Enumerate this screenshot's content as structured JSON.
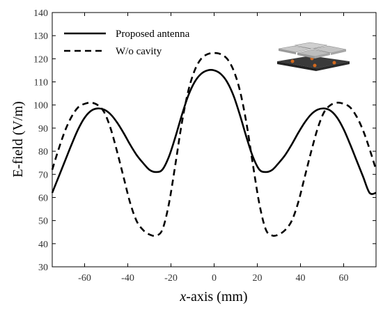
{
  "chart_data": {
    "type": "line",
    "xlabel_italic": "x",
    "xlabel_rest": "-axis (mm)",
    "ylabel": "E-field (V/m)",
    "xlim": [
      -75,
      75
    ],
    "ylim": [
      30,
      140
    ],
    "xticks": [
      -60,
      -40,
      -20,
      0,
      20,
      40,
      60
    ],
    "yticks": [
      30,
      40,
      50,
      60,
      70,
      80,
      90,
      100,
      110,
      120,
      130,
      140
    ],
    "grid": false,
    "legend_position": "top-left",
    "series": [
      {
        "name": "Proposed antenna",
        "style": "solid",
        "color": "#000000",
        "x": [
          -75,
          -72,
          -69,
          -66,
          -63,
          -60,
          -57,
          -54,
          -51,
          -48,
          -45,
          -42,
          -39,
          -36,
          -33,
          -30,
          -27,
          -24,
          -21,
          -18,
          -15,
          -12,
          -9,
          -6,
          -3,
          0,
          3,
          6,
          9,
          12,
          15,
          18,
          21,
          24,
          27,
          30,
          33,
          36,
          39,
          42,
          45,
          48,
          51,
          54,
          57,
          60,
          63,
          66,
          69,
          72,
          75
        ],
        "y": [
          62,
          69,
          76,
          83,
          89.5,
          94.5,
          97.5,
          98.5,
          98,
          96,
          92.5,
          88,
          83,
          78.5,
          75,
          72,
          71,
          72,
          77.5,
          86,
          95.5,
          104,
          110,
          113.5,
          115,
          115,
          113.5,
          110,
          104,
          95.5,
          86,
          77.5,
          72,
          71,
          72,
          75,
          78.5,
          83,
          88,
          92.5,
          96,
          98,
          98.5,
          97.5,
          94.5,
          89.5,
          83,
          76,
          69,
          62,
          62
        ]
      },
      {
        "name": "W/o cavity",
        "style": "dashed",
        "color": "#000000",
        "x": [
          -75,
          -72,
          -69,
          -66,
          -63,
          -60,
          -57,
          -54,
          -51,
          -48,
          -45,
          -42,
          -39,
          -36,
          -33,
          -30,
          -27,
          -24,
          -21,
          -18,
          -15,
          -12,
          -9,
          -6,
          -3,
          0,
          3,
          6,
          9,
          12,
          15,
          18,
          21,
          24,
          27,
          30,
          33,
          36,
          39,
          42,
          45,
          48,
          51,
          54,
          57,
          60,
          63,
          66,
          69,
          72,
          75
        ],
        "y": [
          72,
          81,
          89,
          95,
          99,
          100.5,
          101,
          100,
          97,
          90,
          80,
          69,
          58,
          50,
          46,
          44,
          43.5,
          46,
          57,
          74,
          92,
          106,
          115,
          120,
          122,
          122.5,
          122,
          120,
          115,
          106,
          92,
          74,
          57,
          46,
          43.5,
          44,
          46,
          50,
          58,
          69,
          80,
          90,
          97,
          100,
          101,
          100.5,
          99,
          95,
          89,
          81,
          72
        ]
      }
    ]
  }
}
